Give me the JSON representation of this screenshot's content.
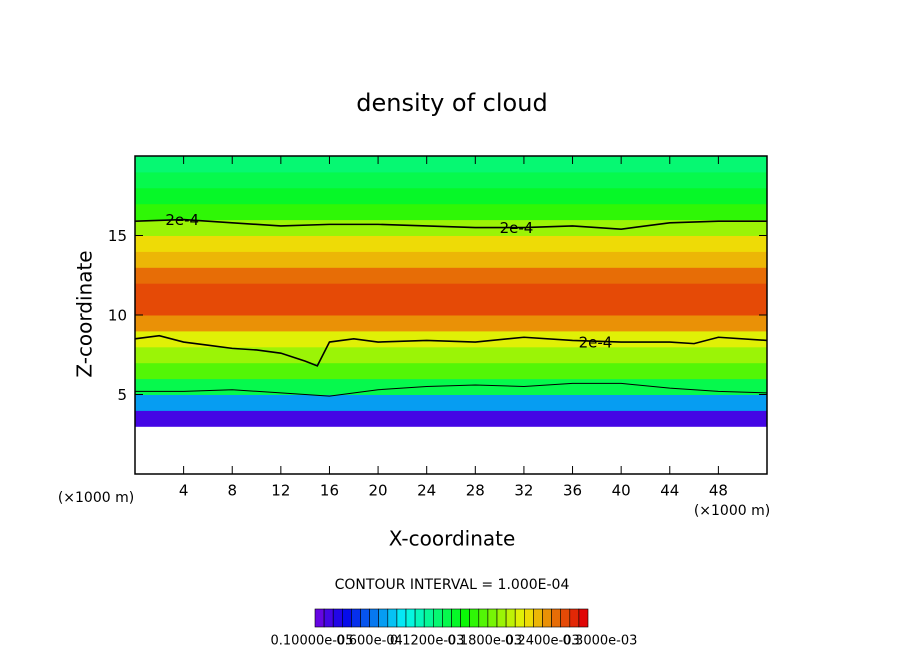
{
  "chart_data": {
    "type": "contour",
    "title": "density of cloud",
    "x_label": "X-coordinate",
    "y_label": "Z-coordinate",
    "x_unit": "(×1000 m)",
    "y_unit": "(×1000 m)",
    "xlim": [
      0,
      52
    ],
    "ylim": [
      0,
      20
    ],
    "xticks": [
      4,
      8,
      12,
      16,
      20,
      24,
      28,
      32,
      36,
      40,
      44,
      48
    ],
    "yticks": [
      5,
      10,
      15
    ],
    "clim": [
      0,
      0.0003
    ],
    "z": [
      3.5,
      4.5,
      5.5,
      6.5,
      7.5,
      8.5,
      9.5,
      10.5,
      11.5,
      12.5,
      13.5,
      14.5,
      15.5,
      16.5,
      17.5,
      18.5,
      19.5
    ],
    "values": [
      2e-05,
      8e-05,
      0.00015,
      0.00019,
      0.00021,
      0.00023,
      0.00026,
      0.00028,
      0.00028,
      0.00027,
      0.00025,
      0.00024,
      0.00021,
      0.00018,
      0.00016,
      0.00015,
      0.00014
    ],
    "contours": [
      {
        "label": "2e-4",
        "x": [
          0,
          4,
          8,
          12,
          16,
          20,
          24,
          28,
          32,
          36,
          40,
          44,
          48,
          52
        ],
        "y": [
          15.9,
          16.0,
          15.8,
          15.6,
          15.7,
          15.7,
          15.6,
          15.5,
          15.5,
          15.6,
          15.4,
          15.8,
          15.9,
          15.9
        ]
      },
      {
        "label": "2e-4",
        "x": [
          0,
          2,
          4,
          6,
          8,
          10,
          12,
          14,
          15,
          16,
          18,
          20,
          24,
          28,
          32,
          36,
          40,
          44,
          46,
          48,
          52
        ],
        "y": [
          8.5,
          8.7,
          8.3,
          8.1,
          7.9,
          7.8,
          7.6,
          7.1,
          6.8,
          8.3,
          8.5,
          8.3,
          8.4,
          8.3,
          8.6,
          8.4,
          8.3,
          8.3,
          8.2,
          8.6,
          8.4
        ]
      },
      {
        "x": [
          0,
          4,
          8,
          12,
          16,
          20,
          24,
          28,
          32,
          36,
          40,
          44,
          48,
          52
        ],
        "y": [
          5.2,
          5.2,
          5.3,
          5.1,
          4.9,
          5.3,
          5.5,
          5.6,
          5.5,
          5.7,
          5.7,
          5.4,
          5.2,
          5.1
        ]
      }
    ],
    "contour_note": "CONTOUR INTERVAL = 1.000E-04",
    "colorbar_levels": [
      1e-05,
      2e-05,
      3e-05,
      4e-05,
      5e-05,
      6e-05,
      7e-05,
      8e-05,
      9e-05,
      0.0001,
      0.00011,
      0.00012,
      0.00013,
      0.00014,
      0.00015,
      0.00016,
      0.00017,
      0.00018,
      0.00019,
      0.0002,
      0.00021,
      0.00022,
      0.00023,
      0.00024,
      0.00025,
      0.00026,
      0.00027,
      0.00028,
      0.00029,
      0.0003
    ],
    "colorbar_labels": [
      "0.10000e-05",
      "0.600e-04",
      "0.1200e-03",
      "0.1800e-03",
      "0.2400e-03",
      "0.3000e-03"
    ]
  }
}
